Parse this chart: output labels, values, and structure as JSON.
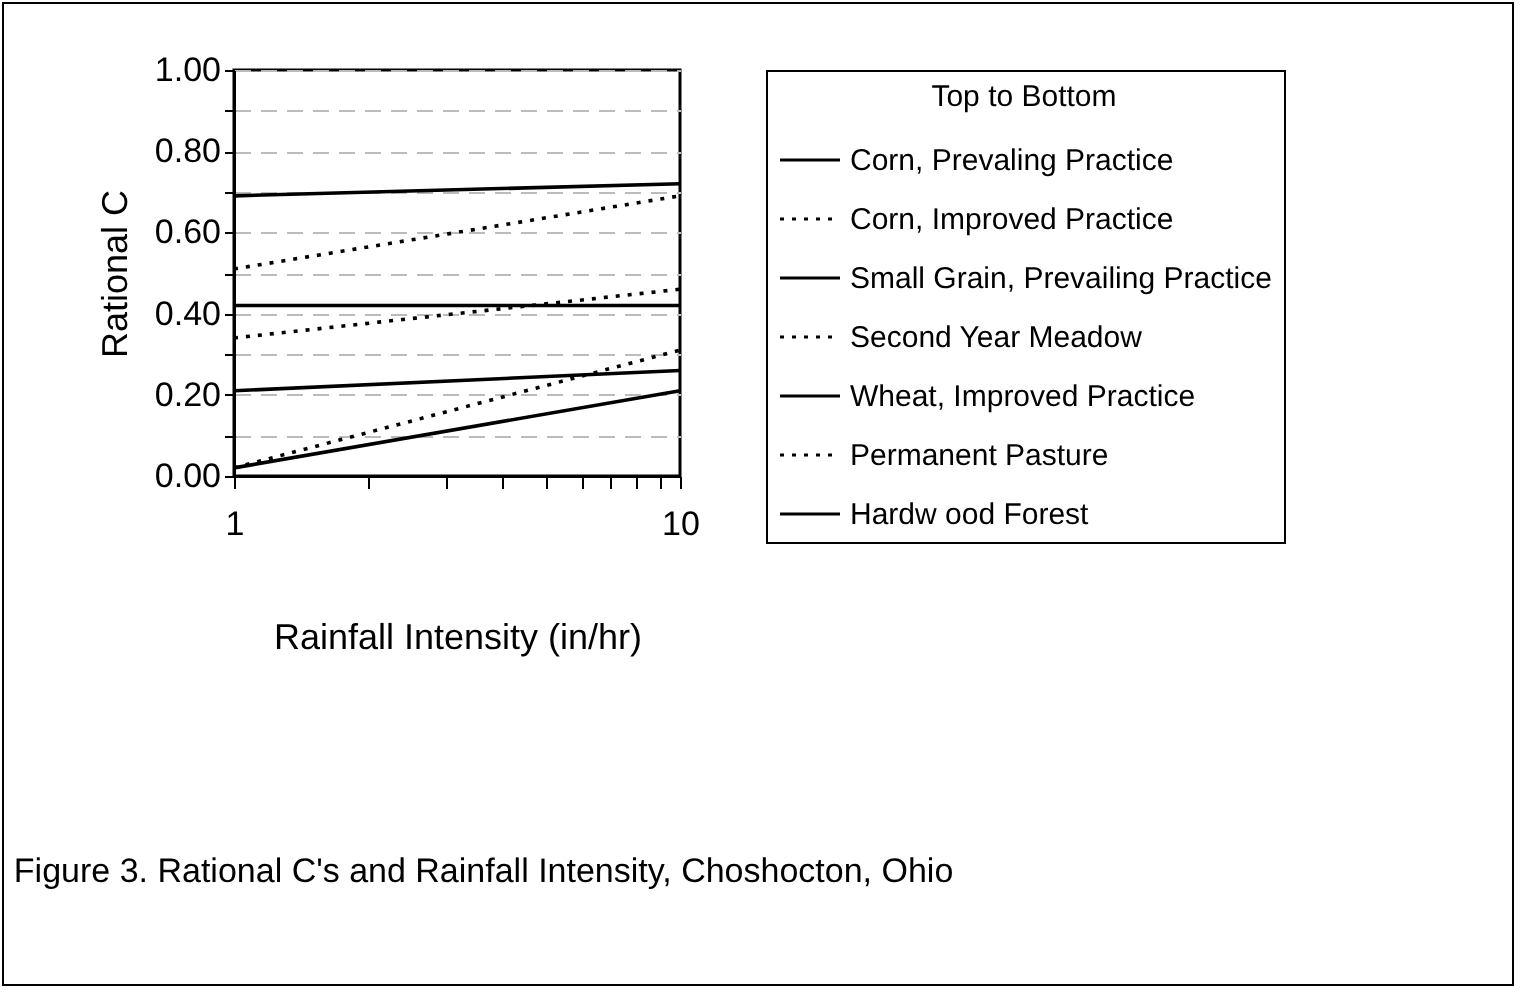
{
  "chart_data": {
    "type": "line",
    "xlabel": "Rainfall Intensity (in/hr)",
    "ylabel": "Rational C",
    "legend_title": "Top to Bottom",
    "annotations": [
      "Figure 3. Rational C's and Rainfall Intensity, Choshocton, Ohio"
    ],
    "x": [
      1,
      10
    ],
    "series": [
      {
        "name": "Corn, Prevaling Practice",
        "color": "#000000",
        "line_style": "solid",
        "values": [
          0.69,
          0.72
        ]
      },
      {
        "name": "Corn, Improved Practice",
        "color": "#000000",
        "line_style": "dotted",
        "values": [
          0.51,
          0.69
        ]
      },
      {
        "name": "Small Grain, Prevailing Practice",
        "color": "#000000",
        "line_style": "solid",
        "values": [
          0.42,
          0.42
        ]
      },
      {
        "name": "Second Year Meadow",
        "color": "#000000",
        "line_style": "dotted",
        "values": [
          0.34,
          0.46
        ]
      },
      {
        "name": "Wheat, Improved Practice",
        "color": "#000000",
        "line_style": "solid",
        "values": [
          0.21,
          0.26
        ]
      },
      {
        "name": "Permanent Pasture",
        "color": "#000000",
        "line_style": "dotted",
        "values": [
          0.02,
          0.31
        ]
      },
      {
        "name": "Hardw ood Forest",
        "color": "#000000",
        "line_style": "solid",
        "values": [
          0.02,
          0.21
        ]
      }
    ],
    "log": "x",
    "xlim": [
      1,
      10
    ],
    "xticks": [
      1,
      {
        "value": 2,
        "label": null
      },
      {
        "value": 3,
        "label": null
      },
      {
        "value": 4,
        "label": null
      },
      {
        "value": 5,
        "label": null
      },
      {
        "value": 6,
        "label": null
      },
      {
        "value": 7,
        "label": null
      },
      {
        "value": 8,
        "label": null
      },
      {
        "value": 9,
        "label": null
      },
      10
    ],
    "ylim": [
      0,
      1
    ],
    "yticks": [
      {
        "value": 0,
        "label": "0.00"
      },
      {
        "value": 0.1,
        "label": null
      },
      {
        "value": 0.2,
        "label": "0.20"
      },
      {
        "value": 0.3,
        "label": null
      },
      {
        "value": 0.4,
        "label": "0.40"
      },
      {
        "value": 0.5,
        "label": null
      },
      {
        "value": 0.6,
        "label": "0.60"
      },
      {
        "value": 0.7,
        "label": null
      },
      {
        "value": 0.8,
        "label": "0.80"
      },
      {
        "value": 0.9,
        "label": null
      },
      {
        "value": 1,
        "label": "1.00"
      }
    ],
    "grid": "y",
    "legend": "right",
    "marker": "none"
  }
}
